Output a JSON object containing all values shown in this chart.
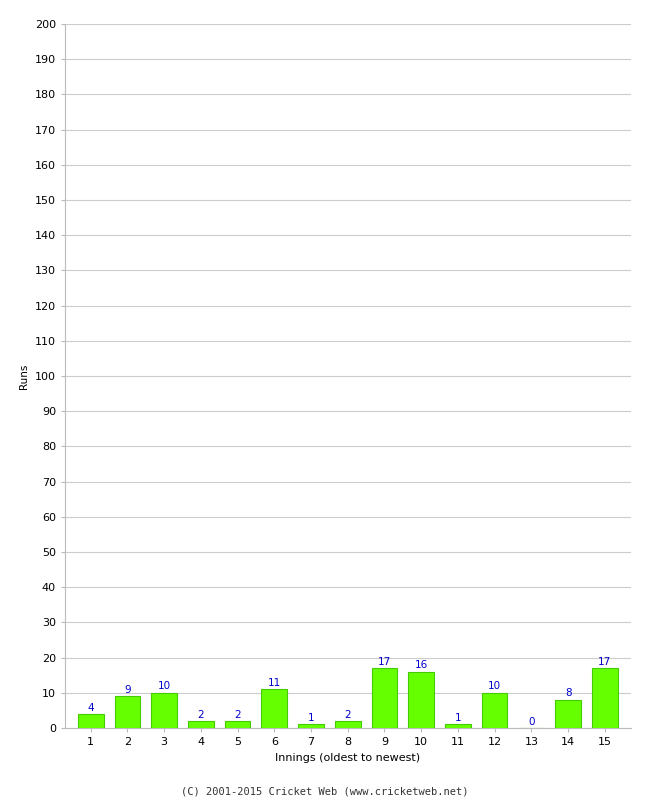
{
  "innings": [
    1,
    2,
    3,
    4,
    5,
    6,
    7,
    8,
    9,
    10,
    11,
    12,
    13,
    14,
    15
  ],
  "runs": [
    4,
    9,
    10,
    2,
    2,
    11,
    1,
    2,
    17,
    16,
    1,
    10,
    0,
    8,
    17
  ],
  "bar_color": "#66ff00",
  "bar_edge_color": "#44cc00",
  "label_color": "#0000cc",
  "ylabel": "Runs",
  "xlabel": "Innings (oldest to newest)",
  "ylim": [
    0,
    200
  ],
  "yticks": [
    0,
    10,
    20,
    30,
    40,
    50,
    60,
    70,
    80,
    90,
    100,
    110,
    120,
    130,
    140,
    150,
    160,
    170,
    180,
    190,
    200
  ],
  "footer": "(C) 2001-2015 Cricket Web (www.cricketweb.net)",
  "background_color": "#ffffff",
  "grid_color": "#cccccc",
  "label_fontsize": 7.5,
  "axis_fontsize": 8,
  "footer_fontsize": 7.5,
  "ylabel_fontsize": 7.5
}
